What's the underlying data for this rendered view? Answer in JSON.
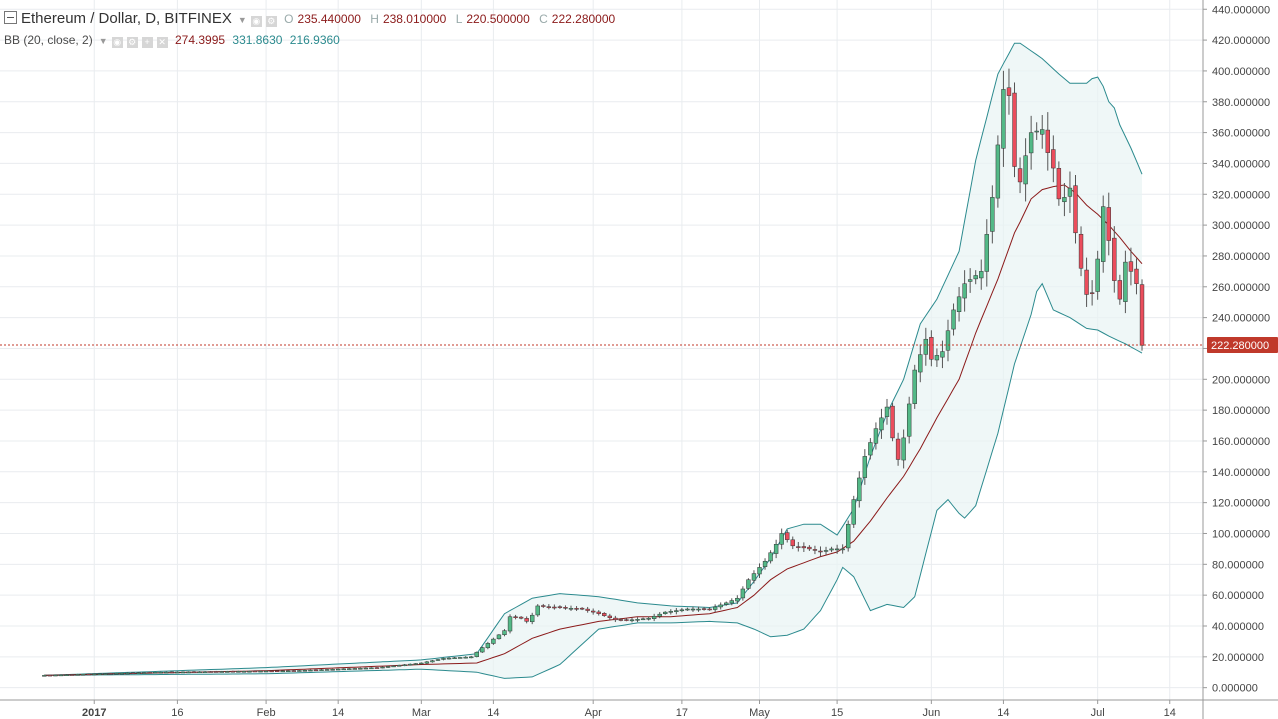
{
  "legend": {
    "title": "Ethereum / Dollar, D, BITFINEX",
    "ohlc": [
      {
        "label": "O",
        "value": "235.440000"
      },
      {
        "label": "H",
        "value": "238.010000"
      },
      {
        "label": "L",
        "value": "220.500000"
      },
      {
        "label": "C",
        "value": "222.280000"
      }
    ],
    "indicator": {
      "name": "BB (20, close, 2)",
      "values": [
        "274.3995",
        "331.8630",
        "216.9360"
      ]
    }
  },
  "colors": {
    "up": "#53b987",
    "down": "#eb4d5c",
    "basis": "#8b1a1a",
    "band": "#2b8a8e",
    "band_fill": "#e8f4f4",
    "price_line": "#c0392b"
  },
  "chart_data": {
    "type": "candlestick",
    "title": "Ethereum / Dollar, D, BITFINEX",
    "ylim": [
      -8,
      446
    ],
    "y_ticks": [
      "440.000000",
      "420.000000",
      "400.000000",
      "380.000000",
      "360.000000",
      "340.000000",
      "320.000000",
      "300.000000",
      "280.000000",
      "260.000000",
      "240.000000",
      "220.000000",
      "200.000000",
      "180.000000",
      "160.000000",
      "140.000000",
      "120.000000",
      "100.000000",
      "80.000000",
      "60.000000",
      "40.000000",
      "20.000000",
      "0.000000"
    ],
    "x_ticks": [
      {
        "label": "2017",
        "day": 9
      },
      {
        "label": "16",
        "day": 24
      },
      {
        "label": "Feb",
        "day": 40
      },
      {
        "label": "14",
        "day": 53
      },
      {
        "label": "Mar",
        "day": 68
      },
      {
        "label": "14",
        "day": 81
      },
      {
        "label": "Apr",
        "day": 99
      },
      {
        "label": "17",
        "day": 115
      },
      {
        "label": "May",
        "day": 129
      },
      {
        "label": "15",
        "day": 143
      },
      {
        "label": "Jun",
        "day": 160
      },
      {
        "label": "14",
        "day": 173
      },
      {
        "label": "Jul",
        "day": 190
      },
      {
        "label": "14",
        "day": 203
      }
    ],
    "x_range_days": [
      -8,
      209
    ],
    "last_day": 198,
    "last_price": "222.280000",
    "close_anchors": [
      [
        0,
        8
      ],
      [
        20,
        10
      ],
      [
        45,
        11
      ],
      [
        60,
        13
      ],
      [
        68,
        16
      ],
      [
        72,
        19
      ],
      [
        77,
        20
      ],
      [
        79,
        26
      ],
      [
        83,
        37
      ],
      [
        84,
        46
      ],
      [
        86,
        45
      ],
      [
        87,
        43
      ],
      [
        88,
        47
      ],
      [
        89,
        53
      ],
      [
        93,
        52
      ],
      [
        97,
        51
      ],
      [
        100,
        48
      ],
      [
        103,
        44
      ],
      [
        106,
        44
      ],
      [
        109,
        45
      ],
      [
        112,
        49
      ],
      [
        116,
        51
      ],
      [
        120,
        51
      ],
      [
        123,
        55
      ],
      [
        125,
        58
      ],
      [
        127,
        70
      ],
      [
        130,
        82
      ],
      [
        132,
        93
      ],
      [
        133,
        100
      ],
      [
        135,
        92
      ],
      [
        138,
        90
      ],
      [
        140,
        88
      ],
      [
        142,
        90
      ],
      [
        144,
        90
      ],
      [
        146,
        122
      ],
      [
        148,
        150
      ],
      [
        150,
        168
      ],
      [
        152,
        182
      ],
      [
        153,
        162
      ],
      [
        154,
        148
      ],
      [
        155,
        162
      ],
      [
        157,
        206
      ],
      [
        159,
        226
      ],
      [
        160,
        213
      ],
      [
        162,
        218
      ],
      [
        164,
        245
      ],
      [
        166,
        262
      ],
      [
        169,
        270
      ],
      [
        171,
        318
      ],
      [
        172,
        352
      ],
      [
        173,
        388
      ],
      [
        174,
        384
      ],
      [
        175,
        338
      ],
      [
        176,
        328
      ],
      [
        177,
        345
      ],
      [
        178,
        360
      ],
      [
        180,
        362
      ],
      [
        181,
        347
      ],
      [
        182,
        337
      ],
      [
        183,
        317
      ],
      [
        184,
        318
      ],
      [
        185,
        324
      ],
      [
        186,
        295
      ],
      [
        187,
        272
      ],
      [
        188,
        255
      ],
      [
        189,
        256
      ],
      [
        190,
        278
      ],
      [
        191,
        312
      ],
      [
        192,
        290
      ],
      [
        193,
        264
      ],
      [
        194,
        252
      ],
      [
        195,
        276
      ],
      [
        196,
        270
      ],
      [
        197,
        262
      ],
      [
        198,
        222
      ]
    ],
    "bb_upper_anchors": [
      [
        0,
        8
      ],
      [
        40,
        13
      ],
      [
        68,
        18
      ],
      [
        78,
        22
      ],
      [
        83,
        48
      ],
      [
        88,
        58
      ],
      [
        93,
        61
      ],
      [
        100,
        59
      ],
      [
        107,
        55
      ],
      [
        113,
        53
      ],
      [
        120,
        52
      ],
      [
        125,
        55
      ],
      [
        128,
        69
      ],
      [
        131,
        84
      ],
      [
        134,
        103
      ],
      [
        137,
        106
      ],
      [
        140,
        106
      ],
      [
        143,
        99
      ],
      [
        146,
        116
      ],
      [
        149,
        150
      ],
      [
        152,
        178
      ],
      [
        155,
        200
      ],
      [
        158,
        236
      ],
      [
        161,
        252
      ],
      [
        165,
        283
      ],
      [
        168,
        342
      ],
      [
        172,
        398
      ],
      [
        175,
        418
      ],
      [
        176,
        418
      ],
      [
        180,
        408
      ],
      [
        183,
        398
      ],
      [
        185,
        392
      ],
      [
        188,
        392
      ],
      [
        189,
        395
      ],
      [
        190,
        396
      ],
      [
        191,
        390
      ],
      [
        192,
        380
      ],
      [
        193,
        376
      ],
      [
        194,
        365
      ],
      [
        196,
        350
      ],
      [
        198,
        333
      ]
    ],
    "bb_basis_anchors": [
      [
        0,
        8
      ],
      [
        40,
        11
      ],
      [
        68,
        15
      ],
      [
        78,
        16
      ],
      [
        83,
        22
      ],
      [
        88,
        32
      ],
      [
        93,
        38
      ],
      [
        100,
        43
      ],
      [
        107,
        46
      ],
      [
        113,
        46
      ],
      [
        120,
        48
      ],
      [
        125,
        52
      ],
      [
        128,
        60
      ],
      [
        131,
        70
      ],
      [
        134,
        77
      ],
      [
        137,
        81
      ],
      [
        140,
        85
      ],
      [
        143,
        88
      ],
      [
        146,
        95
      ],
      [
        149,
        108
      ],
      [
        152,
        123
      ],
      [
        155,
        137
      ],
      [
        158,
        155
      ],
      [
        161,
        175
      ],
      [
        165,
        200
      ],
      [
        168,
        230
      ],
      [
        172,
        265
      ],
      [
        175,
        295
      ],
      [
        176,
        302
      ],
      [
        178,
        317
      ],
      [
        180,
        323
      ],
      [
        182,
        325
      ],
      [
        184,
        326
      ],
      [
        186,
        321
      ],
      [
        188,
        313
      ],
      [
        190,
        307
      ],
      [
        192,
        300
      ],
      [
        194,
        292
      ],
      [
        196,
        283
      ],
      [
        198,
        275
      ]
    ],
    "bb_lower_anchors": [
      [
        0,
        8
      ],
      [
        40,
        9
      ],
      [
        68,
        12
      ],
      [
        78,
        10
      ],
      [
        83,
        6
      ],
      [
        88,
        7
      ],
      [
        93,
        15
      ],
      [
        100,
        38
      ],
      [
        107,
        42
      ],
      [
        113,
        42
      ],
      [
        120,
        43
      ],
      [
        125,
        42
      ],
      [
        128,
        38
      ],
      [
        131,
        33
      ],
      [
        134,
        34
      ],
      [
        137,
        38
      ],
      [
        140,
        50
      ],
      [
        143,
        70
      ],
      [
        144,
        78
      ],
      [
        146,
        72
      ],
      [
        149,
        50
      ],
      [
        152,
        54
      ],
      [
        155,
        52
      ],
      [
        157,
        59
      ],
      [
        161,
        115
      ],
      [
        163,
        122
      ],
      [
        165,
        113
      ],
      [
        166,
        110
      ],
      [
        168,
        118
      ],
      [
        172,
        165
      ],
      [
        175,
        210
      ],
      [
        178,
        242
      ],
      [
        179,
        257
      ],
      [
        180,
        262
      ],
      [
        182,
        245
      ],
      [
        185,
        240
      ],
      [
        188,
        233
      ],
      [
        190,
        232
      ],
      [
        192,
        228
      ],
      [
        195,
        223
      ],
      [
        198,
        217
      ]
    ]
  }
}
